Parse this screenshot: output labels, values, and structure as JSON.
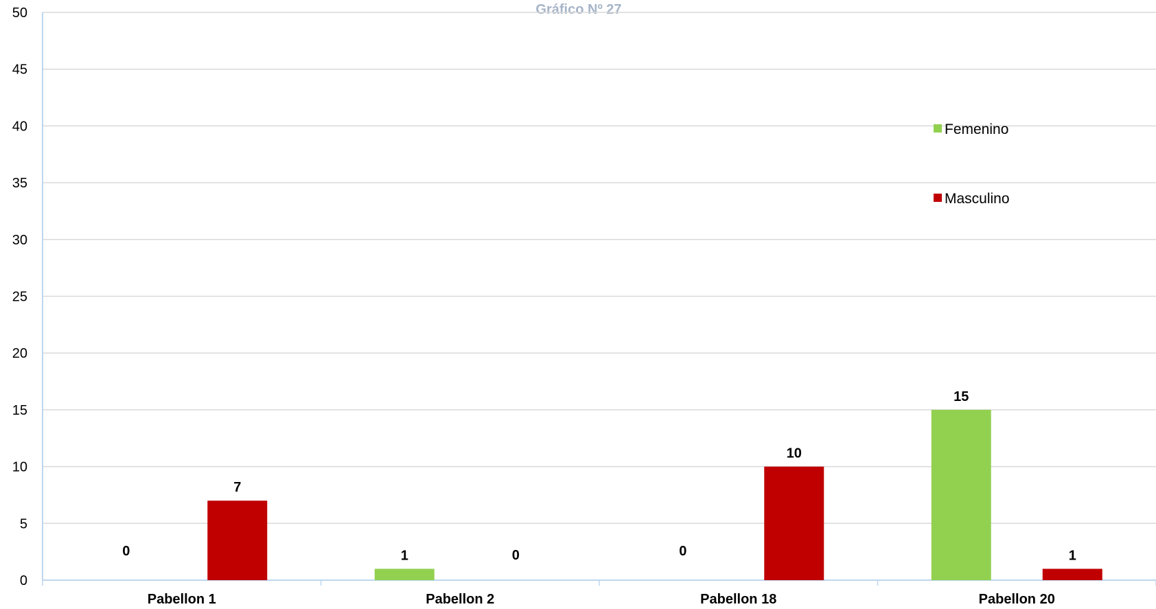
{
  "chart_data": {
    "type": "bar",
    "title": "Gráfico Nº 27",
    "categories": [
      "Pabellon 1",
      "Pabellon 2",
      "Pabellon 18",
      "Pabellon 20"
    ],
    "series": [
      {
        "name": "Femenino",
        "values": [
          0,
          1,
          0,
          15
        ],
        "color": "#92D050"
      },
      {
        "name": "Masculino",
        "values": [
          7,
          0,
          10,
          1
        ],
        "color": "#C00000"
      }
    ],
    "ylim": [
      0,
      50
    ],
    "yticks": [
      0,
      5,
      10,
      15,
      20,
      25,
      30,
      35,
      40,
      45,
      50
    ],
    "grid": true,
    "legend_position": "right",
    "colors": {
      "gridline": "#D9D9D9",
      "axis": "#BDD7EE",
      "title": "#A6B4C8"
    }
  }
}
